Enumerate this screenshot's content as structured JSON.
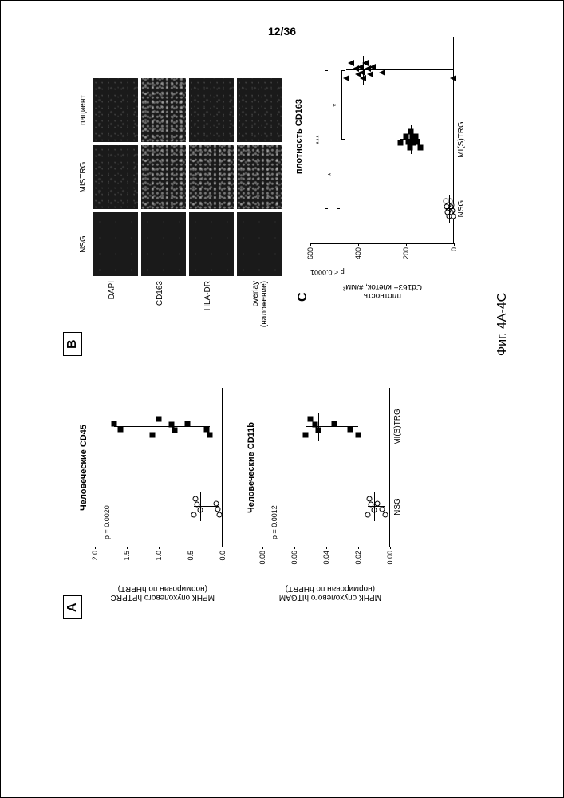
{
  "page_number": "12/36",
  "figure_caption": "Фиг. 4A-4C",
  "panelA": {
    "label": "А",
    "chart1": {
      "title": "Человеческие CD45",
      "ylabel": "МРНК опухолевого hPTPRC\n(нормирован по hHPRT)",
      "pvalue": "p = 0.0020",
      "yticks": [
        "0.0",
        "0.5",
        "1.0",
        "1.5",
        "2.0"
      ],
      "ylim": [
        0,
        2.0
      ],
      "groups": [
        "NSG",
        "MI(S)TRG"
      ],
      "nsg_points": [
        0.05,
        0.08,
        0.1,
        0.35,
        0.4,
        0.42,
        0.45
      ],
      "mistrg_points": [
        0.2,
        0.25,
        0.55,
        0.75,
        0.8,
        1.0,
        1.1,
        1.6,
        1.7
      ]
    },
    "chart2": {
      "title": "Человеческие CD11b",
      "ylabel": "МРНК опухолевого hITGAM\n(нормирован по hHPRT)",
      "pvalue": "p = 0.0012",
      "yticks": [
        "0.00",
        "0.02",
        "0.04",
        "0.06",
        "0.08"
      ],
      "ylim": [
        0,
        0.08
      ],
      "groups": [
        "NSG",
        "MI(S)TRG"
      ],
      "nsg_points": [
        0.003,
        0.005,
        0.008,
        0.01,
        0.012,
        0.013,
        0.014
      ],
      "mistrg_points": [
        0.02,
        0.025,
        0.035,
        0.045,
        0.047,
        0.05,
        0.053
      ]
    }
  },
  "panelB": {
    "label": "В",
    "columns": [
      "NSG",
      "MISTRG",
      "пациент"
    ],
    "rows": [
      "DAPI",
      "CD163",
      "HLA-DR",
      "overlay\n(наложение)"
    ],
    "cell_intensity": [
      [
        "dark",
        "normal",
        "normal"
      ],
      [
        "dark",
        "bright",
        "bright"
      ],
      [
        "dark",
        "bright",
        "normal"
      ],
      [
        "dark",
        "bright",
        "normal"
      ]
    ]
  },
  "panelC": {
    "label": "С",
    "title": "плотность CD163",
    "ylabel": "плотность\nCd163+ клеток, #/мм²",
    "pvalue": "p < 0.0001",
    "yticks": [
      "0",
      "200",
      "400",
      "600"
    ],
    "ylim": [
      0,
      600
    ],
    "groups": [
      "NSG",
      "MI(S)TRG",
      ""
    ],
    "sig_marks": [
      {
        "from": 0,
        "to": 2,
        "level": 540,
        "text": "***"
      },
      {
        "from": 0,
        "to": 1,
        "level": 490,
        "text": "*"
      },
      {
        "from": 1,
        "to": 2,
        "level": 470,
        "text": "*"
      }
    ],
    "nsg_points": [
      5,
      8,
      10,
      12,
      15,
      18,
      20,
      22,
      25,
      28,
      30,
      35
    ],
    "mistrg_points": [
      140,
      155,
      160,
      170,
      175,
      180,
      185,
      190,
      200,
      225
    ],
    "patient_points": [
      5,
      300,
      340,
      350,
      360,
      370,
      380,
      385,
      390,
      400,
      410,
      430,
      450
    ]
  },
  "colors": {
    "background": "#ffffff",
    "text": "#000000",
    "marker_fill": "#000000",
    "marker_stroke": "#000000"
  }
}
